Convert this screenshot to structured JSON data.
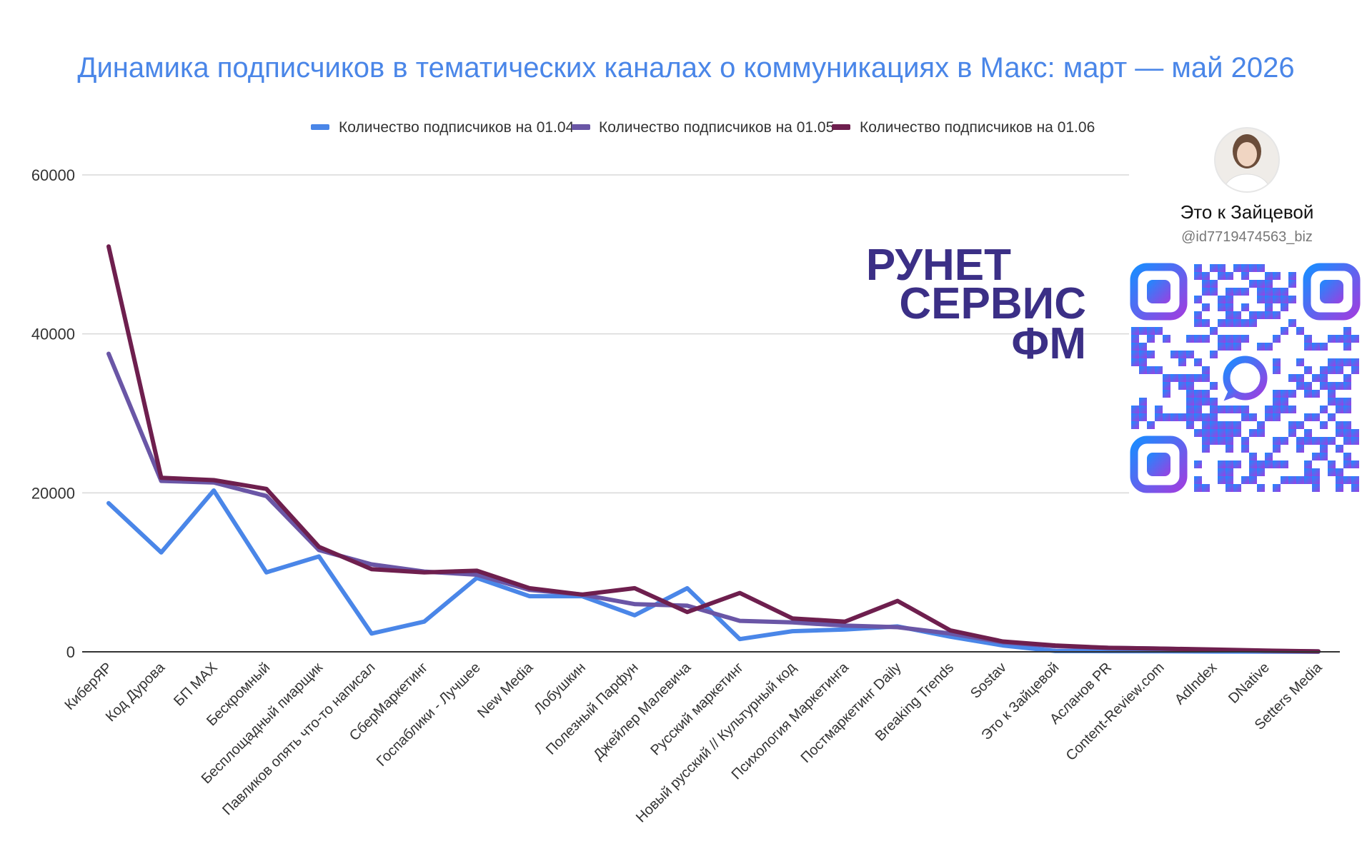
{
  "colors": {
    "title": "#4a86e8",
    "series": [
      "#4a86e8",
      "#6a56a6",
      "#6e1f4e"
    ],
    "brand": "#3b2f86",
    "qr_start": "#1a8cff",
    "qr_end": "#9d3fe0"
  },
  "chart_data": {
    "type": "line",
    "title": "Динамика подписчиков в тематических каналах о коммуникациях в Макс: март — май 2026",
    "xlabel": "",
    "ylabel": "",
    "ylim": [
      0,
      60000
    ],
    "yticks": [
      "0",
      "20000",
      "40000",
      "60000"
    ],
    "grid": true,
    "legend_position": "top",
    "categories": [
      "КиберЯР",
      "Код Дурова",
      "БП MAX",
      "Бескромный",
      "Бесплощадный пиарщик",
      "Павликов опять что-то написал",
      "СберМаркетинг",
      "Госпаблики - Лучшее",
      "New Media",
      "Лобушкин",
      "Полезный Парфун",
      "Джейлер Малевича",
      "Русский маркетинг",
      "Новый русский // Культурный код",
      "Психология Маркетинга",
      "Постмаркетинг Daily",
      "Breaking Trends",
      "Sostav",
      "Это к Зайцевой",
      "Асланов PR",
      "Content-Review.com",
      "AdIndex",
      "DNative",
      "Setters Media"
    ],
    "series": [
      {
        "name": "Количество подписчиков на 01.04",
        "values": [
          18700,
          12500,
          20300,
          10000,
          12000,
          2300,
          3800,
          9300,
          7000,
          7000,
          4600,
          8000,
          1600,
          2600,
          2800,
          3200,
          1900,
          800,
          100,
          80,
          60,
          40,
          20,
          10
        ]
      },
      {
        "name": "Количество подписчиков на 01.05",
        "values": [
          37500,
          21500,
          21300,
          19600,
          12800,
          11000,
          10100,
          9700,
          7800,
          7200,
          6000,
          5800,
          3900,
          3700,
          3300,
          3100,
          2300,
          1200,
          700,
          500,
          400,
          250,
          120,
          50
        ]
      },
      {
        "name": "Количество подписчиков на 01.06",
        "values": [
          51000,
          21900,
          21600,
          20500,
          13200,
          10400,
          10000,
          10200,
          8000,
          7200,
          8000,
          5000,
          7400,
          4200,
          3800,
          6400,
          2700,
          1300,
          800,
          500,
          400,
          300,
          150,
          50
        ]
      }
    ]
  },
  "branding": {
    "logo_lines": [
      "РУНЕТ",
      "СЕРВИС",
      "ФМ"
    ],
    "profile_name": "Это к Зайцевой",
    "profile_handle": "@id7719474563_biz",
    "avatar_icon": "avatar-photo",
    "qr_icon": "qr-code-icon"
  }
}
